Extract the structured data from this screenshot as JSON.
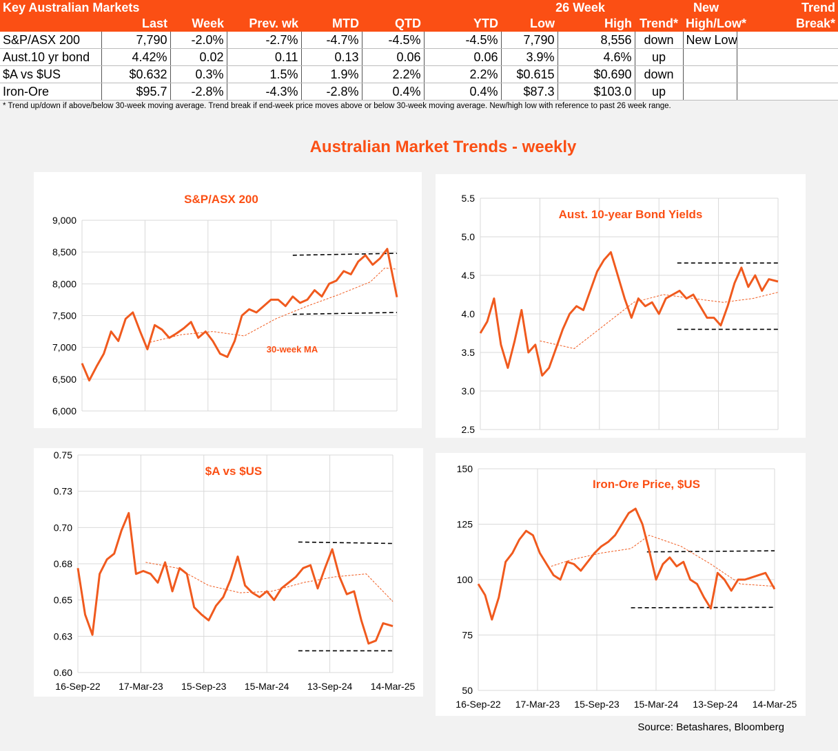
{
  "table": {
    "title": "Key Australian Markets",
    "header_top": {
      "week26": "26 Week",
      "new": "New",
      "trend": "Trend"
    },
    "columns": [
      "Last",
      "Week",
      "Prev. wk",
      "MTD",
      "QTD",
      "YTD",
      "Low",
      "High",
      "Trend*",
      "High/Low*",
      "Break*"
    ],
    "rows": [
      {
        "name": "S&P/ASX 200",
        "cells": [
          "7,790",
          "-2.0%",
          "-2.7%",
          "-4.7%",
          "-4.5%",
          "-4.5%",
          "7,790",
          "8,556",
          "down",
          "New Low",
          ""
        ]
      },
      {
        "name": "Aust.10 yr bond",
        "cells": [
          "4.42%",
          "0.02",
          "0.11",
          "0.13",
          "0.06",
          "0.06",
          "3.9%",
          "4.6%",
          "up",
          "",
          ""
        ]
      },
      {
        "name": "$A vs $US",
        "cells": [
          "$0.632",
          "0.3%",
          "1.5%",
          "1.9%",
          "2.2%",
          "2.2%",
          "$0.615",
          "$0.690",
          "down",
          "",
          ""
        ]
      },
      {
        "name": "Iron-Ore",
        "cells": [
          "$95.7",
          "-2.8%",
          "-4.3%",
          "-2.8%",
          "0.4%",
          "0.4%",
          "$87.3",
          "$103.0",
          "up",
          "",
          ""
        ]
      }
    ],
    "footnote": "*  Trend up/down if above/below 30-week moving average. Trend break if end-week price moves above or below 30-week moving average.  New/high low with reference to past 26 week range."
  },
  "main_title": "Australian Market Trends - weekly",
  "source": "Source:  Betashares, Bloomberg",
  "colors": {
    "accent": "#fb4f14",
    "line": "#f05a1e",
    "grid": "#d9d9d9",
    "bg": "#f2f2f2"
  },
  "chart_data": [
    {
      "type": "line",
      "title": "S&P/ASX 200",
      "x_dates": true,
      "x_range": [
        "2022-09-16",
        "2025-03-14"
      ],
      "x_grid": [
        "2022-09-16",
        "2023-03-17",
        "2023-09-15",
        "2024-03-15",
        "2024-09-13",
        "2025-03-14"
      ],
      "x_ticks": [],
      "ylim": [
        6000,
        9000
      ],
      "yticks": [
        6000,
        6500,
        7000,
        7500,
        8000,
        8500,
        9000
      ],
      "ytick_labels": [
        "6,000",
        "6,500",
        "7,000",
        "7,500",
        "8,000",
        "8,500",
        "9,000"
      ],
      "series": [
        {
          "x": [
            "2022-09-16",
            "2022-10-07",
            "2022-10-28",
            "2022-11-18",
            "2022-12-09",
            "2022-12-30",
            "2023-01-20",
            "2023-02-10",
            "2023-03-03",
            "2023-03-24",
            "2023-04-14",
            "2023-05-05",
            "2023-05-26",
            "2023-06-16",
            "2023-07-07",
            "2023-07-28",
            "2023-08-18",
            "2023-09-08",
            "2023-09-29",
            "2023-10-20",
            "2023-11-10",
            "2023-12-01",
            "2023-12-22",
            "2024-01-12",
            "2024-02-02",
            "2024-02-23",
            "2024-03-15",
            "2024-04-05",
            "2024-04-26",
            "2024-05-17",
            "2024-06-07",
            "2024-06-28",
            "2024-07-19",
            "2024-08-09",
            "2024-08-30",
            "2024-09-20",
            "2024-10-11",
            "2024-11-01",
            "2024-11-22",
            "2024-12-13",
            "2025-01-03",
            "2025-01-24",
            "2025-02-14",
            "2025-03-14"
          ],
          "y": [
            6750,
            6480,
            6700,
            6900,
            7250,
            7100,
            7450,
            7550,
            7250,
            6970,
            7350,
            7280,
            7150,
            7220,
            7300,
            7400,
            7150,
            7250,
            7100,
            6900,
            6850,
            7100,
            7500,
            7600,
            7550,
            7650,
            7750,
            7750,
            7650,
            7800,
            7700,
            7750,
            7900,
            7800,
            8000,
            8050,
            8200,
            8150,
            8350,
            8450,
            8300,
            8400,
            8550,
            7790
          ]
        },
        {
          "name": "30-week MA",
          "x": [
            "2023-03-31",
            "2023-06-30",
            "2023-09-29",
            "2023-12-29",
            "2024-03-29",
            "2024-06-28",
            "2024-09-27",
            "2024-12-27",
            "2025-02-07",
            "2025-03-14"
          ],
          "y": [
            7080,
            7200,
            7250,
            7180,
            7450,
            7650,
            7830,
            8030,
            8250,
            8230
          ]
        }
      ],
      "annotations": [
        {
          "text": "30-week MA"
        }
      ],
      "ranges": [
        {
          "x": [
            "2024-05-17",
            "2025-03-14"
          ],
          "y": [
            8450,
            8480
          ]
        },
        {
          "x": [
            "2024-05-17",
            "2025-03-14"
          ],
          "y": [
            7520,
            7550
          ]
        }
      ]
    },
    {
      "type": "line",
      "title": "Aust. 10-year Bond Yields",
      "x_dates": true,
      "x_range": [
        "2022-09-16",
        "2025-03-14"
      ],
      "x_grid": [
        "2022-09-16",
        "2023-03-17",
        "2023-09-15",
        "2024-03-15",
        "2024-09-13",
        "2025-03-14"
      ],
      "x_ticks": [],
      "ylim": [
        2.5,
        5.5
      ],
      "yticks": [
        2.5,
        3.0,
        3.5,
        4.0,
        4.5,
        5.0,
        5.5
      ],
      "ytick_labels": [
        "2.5",
        "3.0",
        "3.5",
        "4.0",
        "4.5",
        "5.0",
        "5.5"
      ],
      "series": [
        {
          "x": [
            "2022-09-16",
            "2022-10-07",
            "2022-10-28",
            "2022-11-18",
            "2022-12-09",
            "2022-12-30",
            "2023-01-20",
            "2023-02-10",
            "2023-03-03",
            "2023-03-24",
            "2023-04-14",
            "2023-05-05",
            "2023-05-26",
            "2023-06-16",
            "2023-07-07",
            "2023-07-28",
            "2023-08-18",
            "2023-09-08",
            "2023-09-29",
            "2023-10-20",
            "2023-11-10",
            "2023-12-01",
            "2023-12-22",
            "2024-01-12",
            "2024-02-02",
            "2024-02-23",
            "2024-03-15",
            "2024-04-05",
            "2024-04-26",
            "2024-05-17",
            "2024-06-07",
            "2024-06-28",
            "2024-07-19",
            "2024-08-09",
            "2024-08-30",
            "2024-09-20",
            "2024-10-11",
            "2024-11-01",
            "2024-11-22",
            "2024-12-13",
            "2025-01-03",
            "2025-01-24",
            "2025-02-14",
            "2025-03-14"
          ],
          "y": [
            3.75,
            3.9,
            4.2,
            3.6,
            3.3,
            3.65,
            4.05,
            3.5,
            3.6,
            3.2,
            3.3,
            3.55,
            3.8,
            4.0,
            4.1,
            4.05,
            4.3,
            4.55,
            4.7,
            4.8,
            4.5,
            4.2,
            3.95,
            4.2,
            4.1,
            4.15,
            4.0,
            4.2,
            4.25,
            4.3,
            4.2,
            4.25,
            4.1,
            3.95,
            3.95,
            3.85,
            4.1,
            4.4,
            4.6,
            4.35,
            4.5,
            4.3,
            4.45,
            4.42
          ]
        },
        {
          "name": "30-week MA",
          "x": [
            "2023-03-17",
            "2023-06-30",
            "2023-09-29",
            "2023-12-29",
            "2024-03-29",
            "2024-06-28",
            "2024-09-27",
            "2024-12-27",
            "2025-03-14"
          ],
          "y": [
            3.65,
            3.55,
            3.85,
            4.15,
            4.25,
            4.2,
            4.15,
            4.2,
            4.28
          ]
        }
      ],
      "annotations": [],
      "ranges": [
        {
          "x": [
            "2024-05-10",
            "2025-03-14"
          ],
          "y": [
            4.66,
            4.66
          ]
        },
        {
          "x": [
            "2024-05-10",
            "2025-03-14"
          ],
          "y": [
            3.8,
            3.8
          ]
        }
      ]
    },
    {
      "type": "line",
      "title": "$A vs $US",
      "x_dates": true,
      "x_range": [
        "2022-09-16",
        "2025-03-14"
      ],
      "x_grid": [
        "2022-09-16",
        "2023-03-17",
        "2023-09-15",
        "2024-03-15",
        "2024-09-13",
        "2025-03-14"
      ],
      "x_ticks": [
        "2022-09-16",
        "2023-03-17",
        "2023-09-15",
        "2024-03-15",
        "2024-09-13",
        "2025-03-14"
      ],
      "x_tick_labels": [
        "16-Sep-22",
        "17-Mar-23",
        "15-Sep-23",
        "15-Mar-24",
        "13-Sep-24",
        "14-Mar-25"
      ],
      "ylim": [
        0.6,
        0.75
      ],
      "yticks": [
        0.6,
        0.625,
        0.65,
        0.675,
        0.7,
        0.725,
        0.75
      ],
      "ytick_labels": [
        "0.60",
        "0.63",
        "0.65",
        "0.68",
        "0.70",
        "0.73",
        "0.75"
      ],
      "series": [
        {
          "x": [
            "2022-09-16",
            "2022-10-07",
            "2022-10-28",
            "2022-11-18",
            "2022-12-09",
            "2022-12-30",
            "2023-01-20",
            "2023-02-10",
            "2023-03-03",
            "2023-03-24",
            "2023-04-14",
            "2023-05-05",
            "2023-05-26",
            "2023-06-16",
            "2023-07-07",
            "2023-07-28",
            "2023-08-18",
            "2023-09-08",
            "2023-09-29",
            "2023-10-20",
            "2023-11-10",
            "2023-12-01",
            "2023-12-22",
            "2024-01-12",
            "2024-02-02",
            "2024-02-23",
            "2024-03-15",
            "2024-04-05",
            "2024-04-26",
            "2024-05-17",
            "2024-06-07",
            "2024-06-28",
            "2024-07-19",
            "2024-08-09",
            "2024-08-30",
            "2024-09-20",
            "2024-10-11",
            "2024-11-01",
            "2024-11-22",
            "2024-12-13",
            "2025-01-03",
            "2025-01-24",
            "2025-02-14",
            "2025-03-14"
          ],
          "y": [
            0.672,
            0.64,
            0.626,
            0.668,
            0.678,
            0.682,
            0.698,
            0.71,
            0.668,
            0.67,
            0.668,
            0.662,
            0.676,
            0.656,
            0.672,
            0.668,
            0.645,
            0.64,
            0.636,
            0.646,
            0.652,
            0.664,
            0.68,
            0.66,
            0.655,
            0.652,
            0.656,
            0.65,
            0.658,
            0.662,
            0.666,
            0.672,
            0.674,
            0.658,
            0.672,
            0.685,
            0.666,
            0.654,
            0.656,
            0.636,
            0.62,
            0.622,
            0.634,
            0.632
          ]
        },
        {
          "name": "30-week MA",
          "x": [
            "2023-03-31",
            "2023-06-30",
            "2023-09-29",
            "2023-12-29",
            "2024-03-29",
            "2024-06-28",
            "2024-09-27",
            "2024-12-27",
            "2025-03-14"
          ],
          "y": [
            0.676,
            0.672,
            0.66,
            0.655,
            0.656,
            0.662,
            0.666,
            0.668,
            0.649
          ]
        }
      ],
      "annotations": [],
      "ranges": [
        {
          "x": [
            "2024-06-14",
            "2025-03-14"
          ],
          "y": [
            0.69,
            0.689
          ]
        },
        {
          "x": [
            "2024-06-14",
            "2025-03-14"
          ],
          "y": [
            0.615,
            0.615
          ]
        }
      ]
    },
    {
      "type": "line",
      "title": "Iron-Ore Price, $US",
      "x_dates": true,
      "x_range": [
        "2022-09-16",
        "2025-03-14"
      ],
      "x_grid": [
        "2022-09-16",
        "2023-03-17",
        "2023-09-15",
        "2024-03-15",
        "2024-09-13",
        "2025-03-14"
      ],
      "x_ticks": [
        "2022-09-16",
        "2023-03-17",
        "2023-09-15",
        "2024-03-15",
        "2024-09-13",
        "2025-03-14"
      ],
      "x_tick_labels": [
        "16-Sep-22",
        "17-Mar-23",
        "15-Sep-23",
        "15-Mar-24",
        "13-Sep-24",
        "14-Mar-25"
      ],
      "ylim": [
        50,
        150
      ],
      "yticks": [
        50,
        75,
        100,
        125,
        150
      ],
      "ytick_labels": [
        "50",
        "75",
        "100",
        "125",
        "150"
      ],
      "series": [
        {
          "x": [
            "2022-09-16",
            "2022-10-07",
            "2022-10-28",
            "2022-11-18",
            "2022-12-09",
            "2022-12-30",
            "2023-01-20",
            "2023-02-10",
            "2023-03-03",
            "2023-03-24",
            "2023-04-14",
            "2023-05-05",
            "2023-05-26",
            "2023-06-16",
            "2023-07-07",
            "2023-07-28",
            "2023-08-18",
            "2023-09-08",
            "2023-09-29",
            "2023-10-20",
            "2023-11-10",
            "2023-12-01",
            "2023-12-22",
            "2024-01-12",
            "2024-02-02",
            "2024-02-23",
            "2024-03-15",
            "2024-04-05",
            "2024-04-26",
            "2024-05-17",
            "2024-06-07",
            "2024-06-28",
            "2024-07-19",
            "2024-08-09",
            "2024-08-30",
            "2024-09-20",
            "2024-10-11",
            "2024-11-01",
            "2024-11-22",
            "2024-12-13",
            "2025-01-03",
            "2025-01-24",
            "2025-02-14",
            "2025-03-14"
          ],
          "y": [
            98,
            93,
            82,
            92,
            108,
            112,
            118,
            122,
            120,
            112,
            107,
            102,
            100,
            108,
            107,
            104,
            108,
            112,
            115,
            117,
            120,
            125,
            130,
            132,
            125,
            113,
            100,
            107,
            110,
            106,
            108,
            100,
            98,
            92,
            87,
            103,
            100,
            95,
            100,
            100,
            101,
            102,
            103,
            95.7
          ]
        },
        {
          "name": "30-week MA",
          "x": [
            "2023-04-28",
            "2023-06-30",
            "2023-09-29",
            "2023-12-29",
            "2024-02-23",
            "2024-05-31",
            "2024-08-30",
            "2024-11-29",
            "2025-03-14"
          ],
          "y": [
            106,
            109,
            112,
            114,
            120,
            115,
            107,
            98,
            97
          ]
        }
      ],
      "annotations": [],
      "ranges": [
        {
          "x": [
            "2024-02-16",
            "2025-03-14"
          ],
          "y": [
            112.5,
            113
          ]
        },
        {
          "x": [
            "2023-12-29",
            "2025-03-14"
          ],
          "y": [
            87.3,
            87.5
          ]
        }
      ]
    }
  ]
}
